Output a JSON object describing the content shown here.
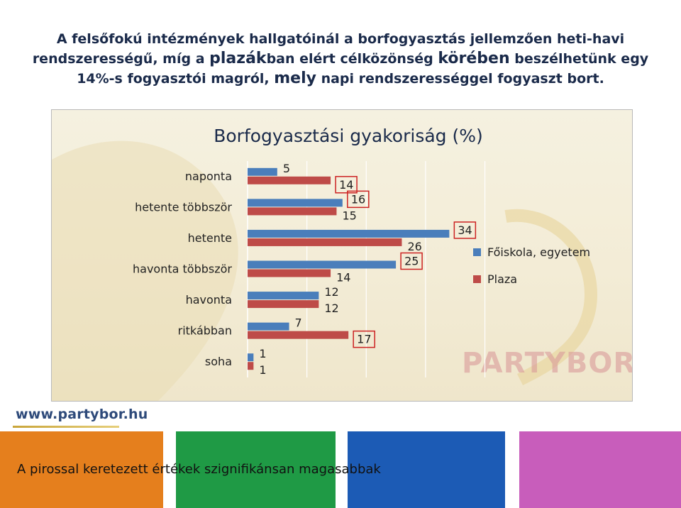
{
  "headline": {
    "part1": "A felsőfokú intézmények hallgatóinál a borfogyasztás jellemzően heti-havi rendszerességű, míg a ",
    "part2": "plazák",
    "part3": "ban elért célközönség ",
    "part4": "körében",
    "part5": " beszélhetünk egy 14%-s fogyasztói magról, ",
    "part6": "mely",
    "part7": " napi rendszerességgel fogyaszt bort."
  },
  "chart_data": {
    "type": "bar",
    "orientation": "horizontal",
    "title": "Borfogyasztási gyakoriság (%)",
    "categories": [
      "naponta",
      "hetente többször",
      "hetente",
      "havonta többször",
      "havonta",
      "ritkábban",
      "soha"
    ],
    "series": [
      {
        "name": "Főiskola, egyetem",
        "color": "#4a7ebb",
        "values": [
          5,
          16,
          34,
          25,
          12,
          7,
          1
        ]
      },
      {
        "name": "Plaza",
        "color": "#be4b48",
        "values": [
          14,
          15,
          26,
          14,
          12,
          17,
          1
        ]
      }
    ],
    "xlim": [
      0,
      40
    ],
    "grid": true,
    "legend_position": "right",
    "highlighted_values": [
      {
        "category": "naponta",
        "series": "Plaza"
      },
      {
        "category": "hetente többször",
        "series": "Főiskola, egyetem"
      },
      {
        "category": "hetente",
        "series": "Főiskola, egyetem"
      },
      {
        "category": "havonta többször",
        "series": "Főiskola, egyetem"
      },
      {
        "category": "ritkábban",
        "series": "Plaza"
      }
    ]
  },
  "watermark": "PARTYBOR",
  "footer": {
    "url": "www.partybor.hu",
    "note": "A pirossal keretezett értékek szignifikánsan magasabbak"
  }
}
